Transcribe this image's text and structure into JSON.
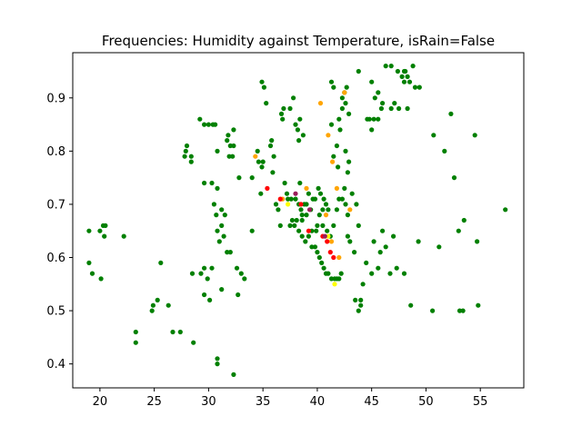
{
  "chart_data": {
    "type": "scatter",
    "title": "Frequencies: Humidity against Temperature, isRain=False",
    "xlabel": "",
    "ylabel": "",
    "xlim": [
      17.5,
      59.0
    ],
    "ylim": [
      0.355,
      0.985
    ],
    "x_ticks": [
      20,
      25,
      30,
      35,
      40,
      45,
      50,
      55
    ],
    "y_ticks": [
      0.4,
      0.5,
      0.6,
      0.7,
      0.8,
      0.9
    ],
    "grid": false,
    "legend": "none",
    "colors": {
      "green": "#008000",
      "orange": "#ffa500",
      "red": "#ff0000",
      "yellow": "#ffff00",
      "purple": "#9b1d5a"
    },
    "series": [
      {
        "color": "#008000",
        "points": [
          [
            19.0,
            0.65
          ],
          [
            19.3,
            0.57
          ],
          [
            19.0,
            0.59
          ],
          [
            20.0,
            0.65
          ],
          [
            20.1,
            0.56
          ],
          [
            20.3,
            0.66
          ],
          [
            20.5,
            0.66
          ],
          [
            20.4,
            0.64
          ],
          [
            22.2,
            0.64
          ],
          [
            23.3,
            0.46
          ],
          [
            23.3,
            0.44
          ],
          [
            24.8,
            0.5
          ],
          [
            24.9,
            0.51
          ],
          [
            25.3,
            0.52
          ],
          [
            25.6,
            0.59
          ],
          [
            26.3,
            0.51
          ],
          [
            26.7,
            0.46
          ],
          [
            27.4,
            0.46
          ],
          [
            28.6,
            0.44
          ],
          [
            28.5,
            0.57
          ],
          [
            29.3,
            0.57
          ],
          [
            29.6,
            0.53
          ],
          [
            29.9,
            0.56
          ],
          [
            29.6,
            0.58
          ],
          [
            30.3,
            0.58
          ],
          [
            30.1,
            0.52
          ],
          [
            30.8,
            0.41
          ],
          [
            30.8,
            0.4
          ],
          [
            31.2,
            0.54
          ],
          [
            32.3,
            0.38
          ],
          [
            32.6,
            0.58
          ],
          [
            32.7,
            0.53
          ],
          [
            33.0,
            0.57
          ],
          [
            33.3,
            0.56
          ],
          [
            29.2,
            0.86
          ],
          [
            29.6,
            0.85
          ],
          [
            30.0,
            0.85
          ],
          [
            30.4,
            0.85
          ],
          [
            30.6,
            0.85
          ],
          [
            30.3,
            0.74
          ],
          [
            29.6,
            0.74
          ],
          [
            27.8,
            0.79
          ],
          [
            27.9,
            0.8
          ],
          [
            28.0,
            0.81
          ],
          [
            28.4,
            0.79
          ],
          [
            28.4,
            0.78
          ],
          [
            30.8,
            0.8
          ],
          [
            30.8,
            0.73
          ],
          [
            30.7,
            0.68
          ],
          [
            30.5,
            0.7
          ],
          [
            30.8,
            0.65
          ],
          [
            31.0,
            0.63
          ],
          [
            31.2,
            0.66
          ],
          [
            31.4,
            0.64
          ],
          [
            31.7,
            0.61
          ],
          [
            32.0,
            0.61
          ],
          [
            31.5,
            0.68
          ],
          [
            31.2,
            0.69
          ],
          [
            31.7,
            0.82
          ],
          [
            31.8,
            0.83
          ],
          [
            32.0,
            0.81
          ],
          [
            31.9,
            0.79
          ],
          [
            32.2,
            0.79
          ],
          [
            32.3,
            0.81
          ],
          [
            32.3,
            0.84
          ],
          [
            32.8,
            0.75
          ],
          [
            34.0,
            0.75
          ],
          [
            34.0,
            0.65
          ],
          [
            34.5,
            0.8
          ],
          [
            34.6,
            0.78
          ],
          [
            34.9,
            0.77
          ],
          [
            35.0,
            0.78
          ],
          [
            34.8,
            0.72
          ],
          [
            34.9,
            0.93
          ],
          [
            35.1,
            0.92
          ],
          [
            35.3,
            0.89
          ],
          [
            35.7,
            0.81
          ],
          [
            35.8,
            0.82
          ],
          [
            36.0,
            0.79
          ],
          [
            35.9,
            0.76
          ],
          [
            36.2,
            0.7
          ],
          [
            36.4,
            0.69
          ],
          [
            36.6,
            0.66
          ],
          [
            36.7,
            0.87
          ],
          [
            36.8,
            0.86
          ],
          [
            37.0,
            0.74
          ],
          [
            36.9,
            0.88
          ],
          [
            37.5,
            0.88
          ],
          [
            37.8,
            0.9
          ],
          [
            38.0,
            0.85
          ],
          [
            38.2,
            0.84
          ],
          [
            38.4,
            0.86
          ],
          [
            38.3,
            0.82
          ],
          [
            38.7,
            0.83
          ],
          [
            37.2,
            0.72
          ],
          [
            37.3,
            0.71
          ],
          [
            37.6,
            0.71
          ],
          [
            38.0,
            0.71
          ],
          [
            38.3,
            0.7
          ],
          [
            38.5,
            0.69
          ],
          [
            38.8,
            0.7
          ],
          [
            39.0,
            0.7
          ],
          [
            39.2,
            0.72
          ],
          [
            39.6,
            0.71
          ],
          [
            39.4,
            0.69
          ],
          [
            39.0,
            0.68
          ],
          [
            38.6,
            0.67
          ],
          [
            38.1,
            0.67
          ],
          [
            37.7,
            0.67
          ],
          [
            37.5,
            0.66
          ],
          [
            37.9,
            0.66
          ],
          [
            38.3,
            0.65
          ],
          [
            38.6,
            0.64
          ],
          [
            38.9,
            0.63
          ],
          [
            39.2,
            0.64
          ],
          [
            39.5,
            0.65
          ],
          [
            39.9,
            0.65
          ],
          [
            40.0,
            0.66
          ],
          [
            39.5,
            0.62
          ],
          [
            39.8,
            0.62
          ],
          [
            40.0,
            0.61
          ],
          [
            40.2,
            0.6
          ],
          [
            40.4,
            0.59
          ],
          [
            40.6,
            0.58
          ],
          [
            40.8,
            0.57
          ],
          [
            41.0,
            0.57
          ],
          [
            41.3,
            0.56
          ],
          [
            41.6,
            0.56
          ],
          [
            41.8,
            0.56
          ],
          [
            42.0,
            0.56
          ],
          [
            42.2,
            0.57
          ],
          [
            40.1,
            0.73
          ],
          [
            40.3,
            0.72
          ],
          [
            40.6,
            0.71
          ],
          [
            40.8,
            0.7
          ],
          [
            41.0,
            0.69
          ],
          [
            40.5,
            0.69
          ],
          [
            40.2,
            0.68
          ],
          [
            40.5,
            0.66
          ],
          [
            40.9,
            0.65
          ],
          [
            41.2,
            0.64
          ],
          [
            41.5,
            0.66
          ],
          [
            41.8,
            0.69
          ],
          [
            42.0,
            0.71
          ],
          [
            42.3,
            0.71
          ],
          [
            42.6,
            0.7
          ],
          [
            42.8,
            0.68
          ],
          [
            43.2,
            0.72
          ],
          [
            43.6,
            0.7
          ],
          [
            43.8,
            0.66
          ],
          [
            42.5,
            0.73
          ],
          [
            42.8,
            0.76
          ],
          [
            41.5,
            0.79
          ],
          [
            41.8,
            0.81
          ],
          [
            41.9,
            0.77
          ],
          [
            42.6,
            0.8
          ],
          [
            42.9,
            0.78
          ],
          [
            41.3,
            0.85
          ],
          [
            42.0,
            0.86
          ],
          [
            42.3,
            0.88
          ],
          [
            42.1,
            0.84
          ],
          [
            42.3,
            0.9
          ],
          [
            42.7,
            0.92
          ],
          [
            42.6,
            0.89
          ],
          [
            42.9,
            0.87
          ],
          [
            42.5,
            0.91
          ],
          [
            41.3,
            0.93
          ],
          [
            41.5,
            0.92
          ],
          [
            43.8,
            0.95
          ],
          [
            45.0,
            0.93
          ],
          [
            44.6,
            0.86
          ],
          [
            44.8,
            0.86
          ],
          [
            45.0,
            0.84
          ],
          [
            45.6,
            0.86
          ],
          [
            45.2,
            0.86
          ],
          [
            45.3,
            0.9
          ],
          [
            45.6,
            0.91
          ],
          [
            46.0,
            0.89
          ],
          [
            46.3,
            0.96
          ],
          [
            45.9,
            0.88
          ],
          [
            46.8,
            0.88
          ],
          [
            46.8,
            0.96
          ],
          [
            47.1,
            0.89
          ],
          [
            47.4,
            0.95
          ],
          [
            47.5,
            0.88
          ],
          [
            47.8,
            0.94
          ],
          [
            48.0,
            0.93
          ],
          [
            48.1,
            0.95
          ],
          [
            48.3,
            0.94
          ],
          [
            48.5,
            0.93
          ],
          [
            48.8,
            0.96
          ],
          [
            49.0,
            0.92
          ],
          [
            49.4,
            0.92
          ],
          [
            48.3,
            0.88
          ],
          [
            48.0,
            0.95
          ],
          [
            42.8,
            0.64
          ],
          [
            43.0,
            0.63
          ],
          [
            43.4,
            0.61
          ],
          [
            43.5,
            0.52
          ],
          [
            43.8,
            0.5
          ],
          [
            44.0,
            0.52
          ],
          [
            44.2,
            0.55
          ],
          [
            45.0,
            0.57
          ],
          [
            45.6,
            0.58
          ],
          [
            45.8,
            0.61
          ],
          [
            46.0,
            0.65
          ],
          [
            46.3,
            0.62
          ],
          [
            46.7,
            0.57
          ],
          [
            47.0,
            0.64
          ],
          [
            47.3,
            0.58
          ],
          [
            48.0,
            0.57
          ],
          [
            48.6,
            0.51
          ],
          [
            49.3,
            0.63
          ],
          [
            50.6,
            0.5
          ],
          [
            50.7,
            0.83
          ],
          [
            51.2,
            0.62
          ],
          [
            51.7,
            0.8
          ],
          [
            52.3,
            0.87
          ],
          [
            52.6,
            0.75
          ],
          [
            53.0,
            0.65
          ],
          [
            53.1,
            0.5
          ],
          [
            53.4,
            0.5
          ],
          [
            53.5,
            0.67
          ],
          [
            54.5,
            0.83
          ],
          [
            54.7,
            0.63
          ],
          [
            54.8,
            0.51
          ],
          [
            57.3,
            0.69
          ],
          [
            44.0,
            0.51
          ],
          [
            44.5,
            0.59
          ],
          [
            45.2,
            0.63
          ],
          [
            38.6,
            0.68
          ],
          [
            38.4,
            0.74
          ],
          [
            39.8,
            0.71
          ]
        ]
      },
      {
        "color": "#ffa500",
        "points": [
          [
            34.3,
            0.79
          ],
          [
            40.3,
            0.89
          ],
          [
            41.0,
            0.83
          ],
          [
            41.4,
            0.78
          ],
          [
            42.5,
            0.91
          ],
          [
            39.0,
            0.73
          ],
          [
            41.8,
            0.73
          ],
          [
            40.8,
            0.68
          ],
          [
            43.0,
            0.69
          ],
          [
            42.0,
            0.6
          ],
          [
            41.3,
            0.63
          ],
          [
            36.8,
            0.71
          ]
        ]
      },
      {
        "color": "#ff0000",
        "points": [
          [
            35.4,
            0.73
          ],
          [
            36.6,
            0.71
          ],
          [
            38.5,
            0.7
          ],
          [
            39.2,
            0.65
          ],
          [
            40.5,
            0.64
          ],
          [
            40.9,
            0.63
          ],
          [
            41.2,
            0.61
          ],
          [
            41.5,
            0.6
          ]
        ]
      },
      {
        "color": "#ffff00",
        "points": [
          [
            41.6,
            0.55
          ],
          [
            41.0,
            0.64
          ],
          [
            37.3,
            0.7
          ]
        ]
      },
      {
        "color": "#9b1d5a",
        "points": [
          [
            38.0,
            0.72
          ],
          [
            39.3,
            0.69
          ],
          [
            40.7,
            0.64
          ]
        ]
      }
    ]
  }
}
